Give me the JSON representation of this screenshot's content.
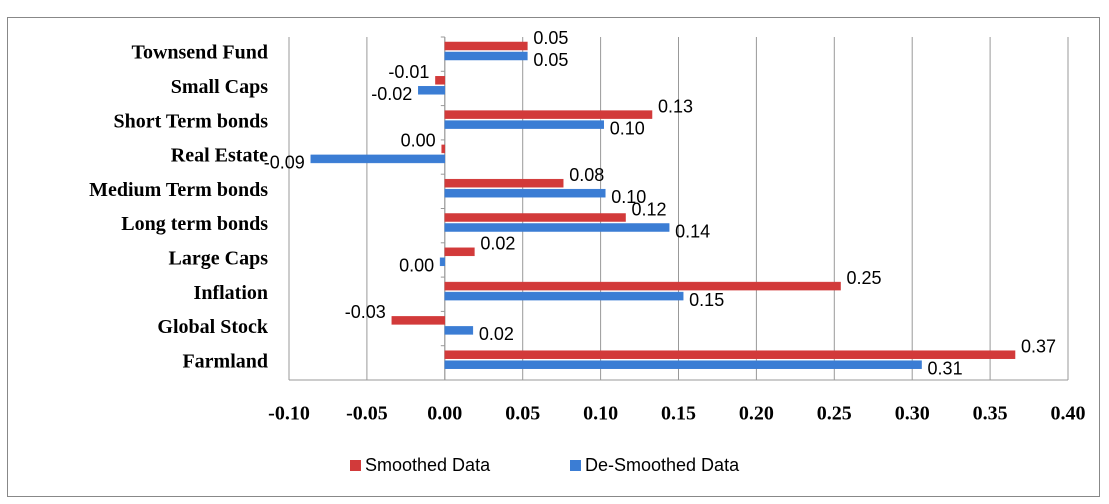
{
  "chart_data": {
    "type": "bar",
    "orientation": "horizontal",
    "categories": [
      "Townsend Fund",
      "Small Caps",
      "Short Term bonds",
      "Real Estate",
      "Medium Term bonds",
      "Long term bonds",
      "Large Caps",
      "Inflation",
      "Global Stock",
      "Farmland"
    ],
    "series": [
      {
        "name": "Smoothed Data",
        "color": "#d23a3a",
        "values": [
          0.053,
          -0.006,
          0.133,
          -0.002,
          0.076,
          0.116,
          0.019,
          0.254,
          -0.034,
          0.366
        ],
        "value_labels": [
          "0.05",
          "-0.01",
          "0.13",
          "0.00",
          "0.08",
          "0.12",
          "0.02",
          "0.25",
          "-0.03",
          "0.37"
        ]
      },
      {
        "name": "De-Smoothed Data",
        "color": "#3b7dd4",
        "values": [
          0.053,
          -0.017,
          0.102,
          -0.086,
          0.103,
          0.144,
          -0.003,
          0.153,
          0.018,
          0.306
        ],
        "value_labels": [
          "0.05",
          "-0.02",
          "0.10",
          "-0.09",
          "0.10",
          "0.14",
          "0.00",
          "0.15",
          "0.02",
          "0.31"
        ]
      }
    ],
    "xlim": [
      -0.1,
      0.4
    ],
    "xticks": [
      {
        "value": -0.1,
        "label": "-0.10"
      },
      {
        "value": -0.05,
        "label": "-0.05"
      },
      {
        "value": 0,
        "label": "0.00"
      },
      {
        "value": 0.05,
        "label": "0.05"
      },
      {
        "value": 0.1,
        "label": "0.10"
      },
      {
        "value": 0.15,
        "label": "0.15"
      },
      {
        "value": 0.2,
        "label": "0.20"
      },
      {
        "value": 0.25,
        "label": "0.25"
      },
      {
        "value": 0.3,
        "label": "0.30"
      },
      {
        "value": 0.35,
        "label": "0.35"
      },
      {
        "value": 0.4,
        "label": "0.40"
      }
    ],
    "grid": true,
    "legend": "bottom"
  }
}
